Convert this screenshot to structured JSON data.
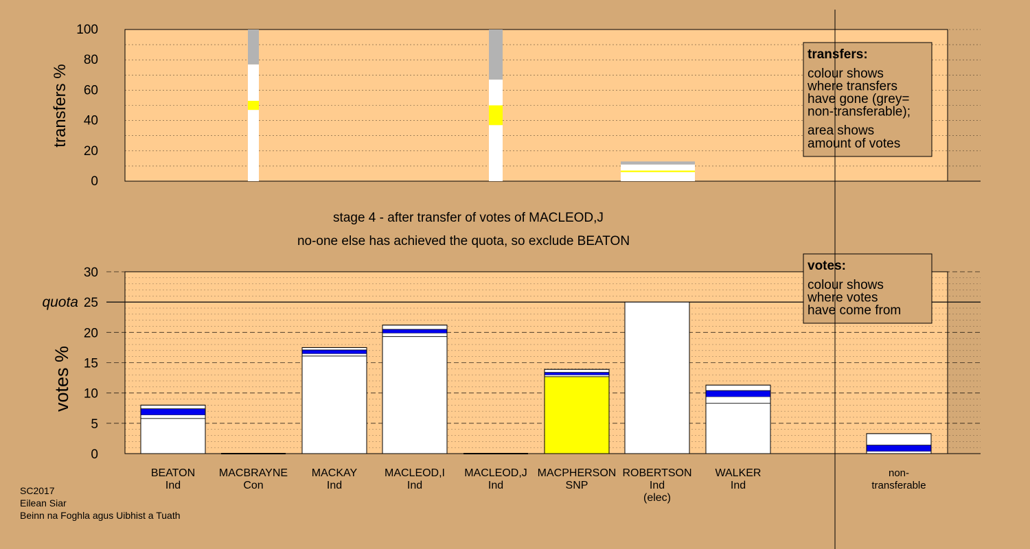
{
  "chart_data": [
    {
      "type": "bar",
      "subtype": "stacked-transfer",
      "ylabel": "transfers %",
      "ylim": [
        0,
        100
      ],
      "yticks": [
        0,
        20,
        40,
        60,
        80,
        100
      ],
      "grid": true,
      "legend": {
        "placement": "top-right",
        "title": "transfers:",
        "lines": [
          "colour shows",
          "where transfers",
          "have gone (grey=",
          "non-transferable);"
        ],
        "lines2": [
          "area shows",
          "amount of votes"
        ]
      },
      "series": [
        {
          "category": "MACBRAYNE",
          "segments": [
            {
              "color": "#ffffff",
              "value": 47
            },
            {
              "color": "#ffff00",
              "value": 6
            },
            {
              "color": "#ffffff",
              "value": 24
            },
            {
              "color": "#b3b3b3",
              "value": 23
            }
          ]
        },
        {
          "category": "MACLEOD,J",
          "segments": [
            {
              "color": "#ffffff",
              "value": 37
            },
            {
              "color": "#ffff00",
              "value": 13
            },
            {
              "color": "#ffffff",
              "value": 17
            },
            {
              "color": "#b3b3b3",
              "value": 33
            }
          ]
        },
        {
          "category": "ROBERTSON",
          "segments": [
            {
              "color": "#ffffff",
              "value": 6
            },
            {
              "color": "#ffff00",
              "value": 1
            },
            {
              "color": "#ffffff",
              "value": 4
            },
            {
              "color": "#b3b3b3",
              "value": 2
            }
          ]
        }
      ]
    },
    {
      "type": "bar",
      "subtype": "stacked-votes",
      "ylabel": "votes %",
      "ylim": [
        0,
        30
      ],
      "yticks": [
        0,
        5,
        10,
        15,
        20,
        25,
        30
      ],
      "quota": 25,
      "quota_label": "quota",
      "grid": true,
      "legend": {
        "placement": "top-right",
        "title": "votes:",
        "lines": [
          "colour shows",
          "where votes",
          "have come from"
        ]
      },
      "categories": [
        {
          "name": "BEATON",
          "party": "Ind",
          "extra": ""
        },
        {
          "name": "MACBRAYNE",
          "party": "Con",
          "extra": ""
        },
        {
          "name": "MACKAY",
          "party": "Ind",
          "extra": ""
        },
        {
          "name": "MACLEOD,I",
          "party": "Ind",
          "extra": ""
        },
        {
          "name": "MACLEOD,J",
          "party": "Ind",
          "extra": ""
        },
        {
          "name": "MACPHERSON",
          "party": "SNP",
          "extra": ""
        },
        {
          "name": "ROBERTSON",
          "party": "Ind",
          "extra": "(elec)"
        },
        {
          "name": "WALKER",
          "party": "Ind",
          "extra": ""
        },
        {
          "name": "non-",
          "party": "transferable",
          "extra": ""
        }
      ],
      "bars": [
        {
          "category": "BEATON",
          "segments": [
            {
              "color": "#ffffff",
              "value": 5.8
            },
            {
              "color": "#ffffff",
              "value": 0.6
            },
            {
              "color": "#0000ee",
              "value": 1.0
            },
            {
              "color": "#ffffff",
              "value": 0.6
            }
          ]
        },
        {
          "category": "MACBRAYNE",
          "segments": []
        },
        {
          "category": "MACKAY",
          "segments": [
            {
              "color": "#ffffff",
              "value": 16.1
            },
            {
              "color": "#ffffff",
              "value": 0.4
            },
            {
              "color": "#0000ee",
              "value": 0.6
            },
            {
              "color": "#ffffff",
              "value": 0.4
            }
          ]
        },
        {
          "category": "MACLEOD,I",
          "segments": [
            {
              "color": "#ffffff",
              "value": 19.3
            },
            {
              "color": "#ffffff",
              "value": 0.6
            },
            {
              "color": "#0000ee",
              "value": 0.6
            },
            {
              "color": "#ffffff",
              "value": 0.7
            }
          ]
        },
        {
          "category": "MACLEOD,J",
          "segments": []
        },
        {
          "category": "MACPHERSON",
          "segments": [
            {
              "color": "#ffff00",
              "value": 12.7
            },
            {
              "color": "#ffffff",
              "value": 0.3
            },
            {
              "color": "#0000ee",
              "value": 0.4
            },
            {
              "color": "#ffffff",
              "value": 0.5
            }
          ]
        },
        {
          "category": "ROBERTSON",
          "segments": [
            {
              "color": "#ffffff",
              "value": 25.0
            }
          ]
        },
        {
          "category": "WALKER",
          "segments": [
            {
              "color": "#ffffff",
              "value": 8.3
            },
            {
              "color": "#ffffff",
              "value": 1.1
            },
            {
              "color": "#0000ee",
              "value": 1.0
            },
            {
              "color": "#ffffff",
              "value": 0.9
            }
          ]
        },
        {
          "category": "non-",
          "segments": [
            {
              "color": "#ffffff",
              "value": 0.4
            },
            {
              "color": "#0000ee",
              "value": 1.0
            },
            {
              "color": "#ffffff",
              "value": 1.9
            }
          ]
        }
      ]
    }
  ],
  "stage_title": "stage 4 - after transfer of votes of MACLEOD,J",
  "stage_subtitle": "no-one else has achieved the quota, so exclude BEATON",
  "footer": {
    "line1": "SC2017",
    "line2": "Eilean Siar",
    "line3": "Beinn na Foghla agus Uibhist a Tuath"
  },
  "colors": {
    "background": "#d4a976",
    "plot_area": "#ffcc8f",
    "legend_box": "#d4a976",
    "transfer_grey": "#b3b3b3",
    "snp_yellow": "#ffff00",
    "blue": "#0000ee"
  }
}
